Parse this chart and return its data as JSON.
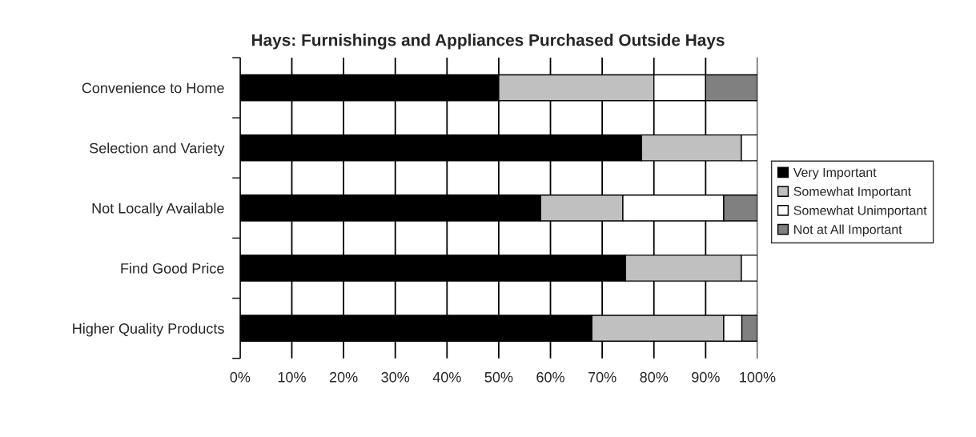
{
  "chart_data": {
    "type": "bar",
    "orientation": "horizontal",
    "stacked": true,
    "title": "Hays: Furnishings and Appliances Purchased Outside Hays",
    "categories": [
      "Convenience to Home",
      "Selection and Variety",
      "Not Locally Available",
      "Find Good Price",
      "Higher Quality Products"
    ],
    "series": [
      {
        "name": "Very Important",
        "color": "#000000",
        "values": [
          50,
          77.6,
          58.1,
          74.5,
          68.0
        ]
      },
      {
        "name": "Somewhat Important",
        "color": "#c0c0c0",
        "values": [
          30,
          19.3,
          15.9,
          22.4,
          25.5
        ]
      },
      {
        "name": "Somewhat Unimportant",
        "color": "#ffffff",
        "values": [
          10,
          3.1,
          19.5,
          3.1,
          3.5
        ]
      },
      {
        "name": "Not at All Important",
        "color": "#808080",
        "values": [
          10,
          null,
          6.5,
          null,
          3.0
        ]
      }
    ],
    "xlim": [
      0,
      100
    ],
    "xticks": [
      {
        "value": 0,
        "label": "0%"
      },
      {
        "value": 10,
        "label": "10%"
      },
      {
        "value": 20,
        "label": "20%"
      },
      {
        "value": 30,
        "label": "30%"
      },
      {
        "value": 40,
        "label": "40%"
      },
      {
        "value": 50,
        "label": "50%"
      },
      {
        "value": 60,
        "label": "60%"
      },
      {
        "value": 70,
        "label": "70%"
      },
      {
        "value": 80,
        "label": "80%"
      },
      {
        "value": 90,
        "label": "90%"
      },
      {
        "value": 100,
        "label": "100%"
      }
    ],
    "grid": "x",
    "legend": "right"
  }
}
